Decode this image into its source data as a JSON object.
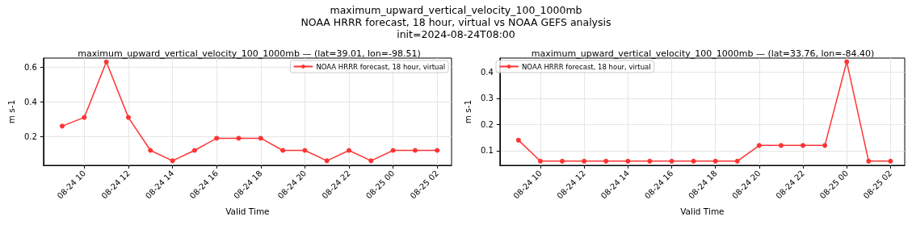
{
  "chart_data": [
    {
      "type": "line",
      "title": "maximum_upward_vertical_velocity_100_1000mb — (lat=39.01, lon=-98.51)",
      "annotations": [
        "maximum_upward_vertical_velocity_100_1000mb",
        "NOAA HRRR forecast, 18 hour, virtual vs NOAA GEFS analysis",
        "init=2024-08-24T08:00"
      ],
      "xlabel": "Valid Time",
      "ylabel": "m s-1",
      "x": [
        "2024-08-24T09:00",
        "2024-08-24T10:00",
        "2024-08-24T11:00",
        "2024-08-24T12:00",
        "2024-08-24T13:00",
        "2024-08-24T14:00",
        "2024-08-24T15:00",
        "2024-08-24T16:00",
        "2024-08-24T17:00",
        "2024-08-24T18:00",
        "2024-08-24T19:00",
        "2024-08-24T20:00",
        "2024-08-24T21:00",
        "2024-08-24T22:00",
        "2024-08-24T23:00",
        "2024-08-25T00:00",
        "2024-08-25T01:00",
        "2024-08-25T02:00"
      ],
      "series": [
        {
          "name": "NOAA HRRR forecast, 18 hour, virtual",
          "color": "#ff3333",
          "values": [
            0.26,
            0.31,
            0.63,
            0.31,
            0.12,
            0.06,
            0.12,
            0.19,
            0.19,
            0.19,
            0.12,
            0.12,
            0.06,
            0.12,
            0.06,
            0.12,
            0.12,
            0.12
          ]
        }
      ],
      "xlim": [
        "2024-08-24T08:09",
        "2024-08-25T02:39"
      ],
      "xticks": [
        {
          "value": "2024-08-24T10:00",
          "label": "08-24 10"
        },
        {
          "value": "2024-08-24T12:00",
          "label": "08-24 12"
        },
        {
          "value": "2024-08-24T14:00",
          "label": "08-24 14"
        },
        {
          "value": "2024-08-24T16:00",
          "label": "08-24 16"
        },
        {
          "value": "2024-08-24T18:00",
          "label": "08-24 18"
        },
        {
          "value": "2024-08-24T20:00",
          "label": "08-24 20"
        },
        {
          "value": "2024-08-24T22:00",
          "label": "08-24 22"
        },
        {
          "value": "2024-08-25T00:00",
          "label": "08-25 00"
        },
        {
          "value": "2024-08-25T02:00",
          "label": "08-25 02"
        }
      ],
      "ylim": [
        0.034,
        0.652
      ],
      "yticks": [
        0.2,
        0.4,
        0.6
      ],
      "grid": true,
      "legend": "top right",
      "marker": "circle",
      "line_style": "solid"
    },
    {
      "type": "line",
      "title": "maximum_upward_vertical_velocity_100_1000mb — (lat=33.76, lon=-84.40)",
      "xlabel": "Valid Time",
      "ylabel": "m s-1",
      "x": [
        "2024-08-24T09:00",
        "2024-08-24T10:00",
        "2024-08-24T11:00",
        "2024-08-24T12:00",
        "2024-08-24T13:00",
        "2024-08-24T14:00",
        "2024-08-24T15:00",
        "2024-08-24T16:00",
        "2024-08-24T17:00",
        "2024-08-24T18:00",
        "2024-08-24T19:00",
        "2024-08-24T20:00",
        "2024-08-24T21:00",
        "2024-08-24T22:00",
        "2024-08-24T23:00",
        "2024-08-25T00:00",
        "2024-08-25T01:00",
        "2024-08-25T02:00"
      ],
      "series": [
        {
          "name": "NOAA HRRR forecast, 18 hour, virtual",
          "color": "#ff3333",
          "values": [
            0.14,
            0.06,
            0.06,
            0.06,
            0.06,
            0.06,
            0.06,
            0.06,
            0.06,
            0.06,
            0.06,
            0.12,
            0.12,
            0.12,
            0.12,
            0.44,
            0.06,
            0.06
          ]
        }
      ],
      "xlim": [
        "2024-08-24T08:09",
        "2024-08-25T02:39"
      ],
      "xticks": [
        {
          "value": "2024-08-24T10:00",
          "label": "08-24 10"
        },
        {
          "value": "2024-08-24T12:00",
          "label": "08-24 12"
        },
        {
          "value": "2024-08-24T14:00",
          "label": "08-24 14"
        },
        {
          "value": "2024-08-24T16:00",
          "label": "08-24 16"
        },
        {
          "value": "2024-08-24T18:00",
          "label": "08-24 18"
        },
        {
          "value": "2024-08-24T20:00",
          "label": "08-24 20"
        },
        {
          "value": "2024-08-24T22:00",
          "label": "08-24 22"
        },
        {
          "value": "2024-08-25T00:00",
          "label": "08-25 00"
        },
        {
          "value": "2024-08-25T02:00",
          "label": "08-25 02"
        }
      ],
      "ylim": [
        0.044,
        0.454
      ],
      "yticks": [
        0.1,
        0.2,
        0.3,
        0.4
      ],
      "grid": true,
      "legend": "top left",
      "marker": "circle",
      "line_style": "solid"
    }
  ]
}
